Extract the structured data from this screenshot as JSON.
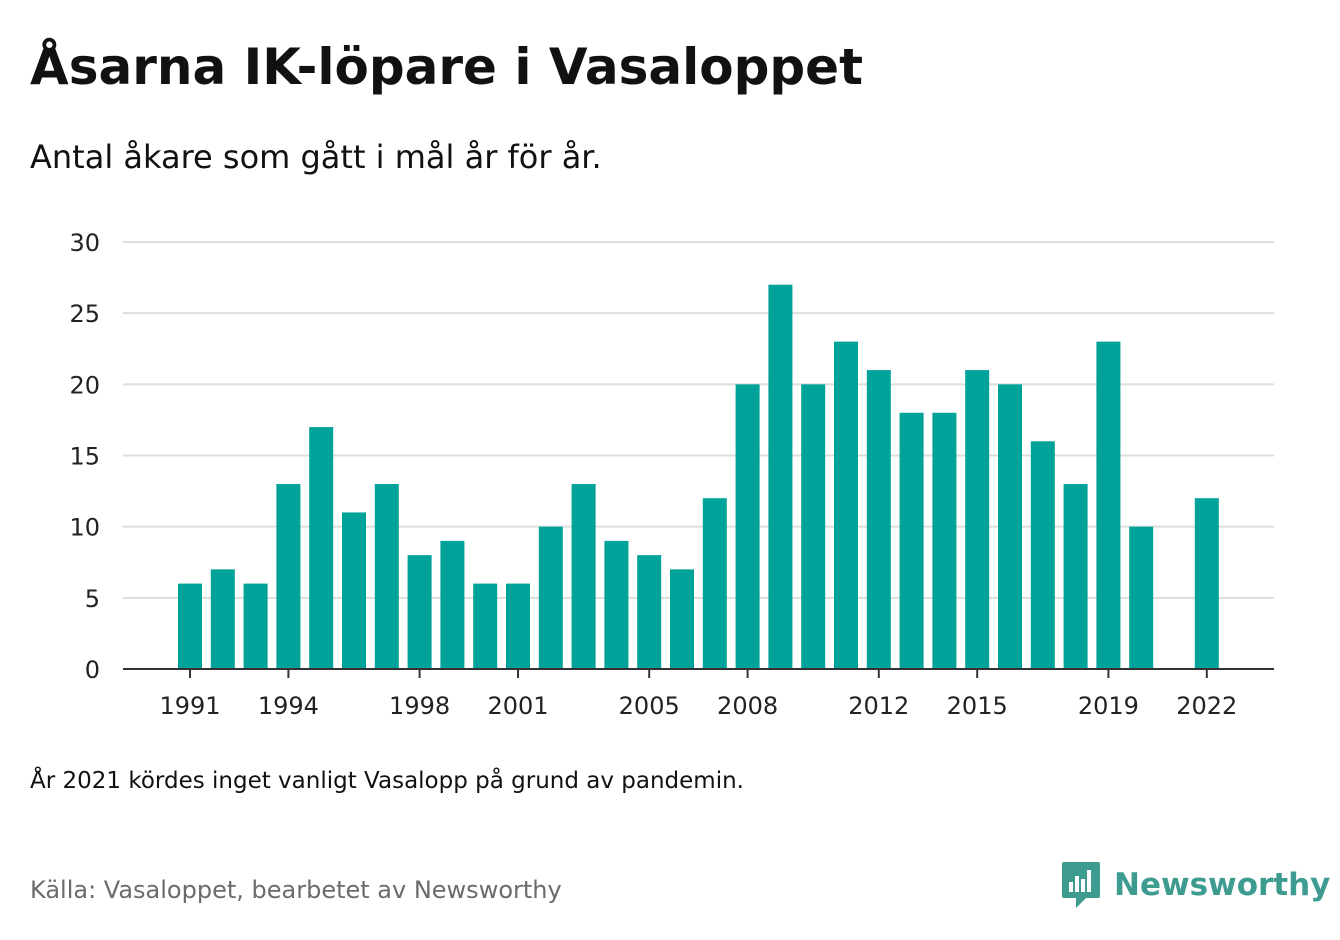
{
  "title": "Åsarna IK-löpare i Vasaloppet",
  "subtitle": "Antal åkare som gått i mål år för år.",
  "note": "År 2021 kördes inget vanligt Vasalopp på grund av pandemin.",
  "source": "Källa: Vasaloppet, bearbetet av Newsworthy",
  "brand": {
    "name": "Newsworthy",
    "icon": "newsworthy-logo-icon",
    "color": "#3d9b8f"
  },
  "colors": {
    "bar": "#00a39a",
    "grid": "#dddddd",
    "axis": "#333333"
  },
  "chart_data": {
    "type": "bar",
    "x": [
      1991,
      1992,
      1993,
      1994,
      1995,
      1996,
      1997,
      1998,
      1999,
      2000,
      2001,
      2002,
      2003,
      2004,
      2005,
      2006,
      2007,
      2008,
      2009,
      2010,
      2011,
      2012,
      2013,
      2014,
      2015,
      2016,
      2017,
      2018,
      2019,
      2020,
      2021,
      2022
    ],
    "values": [
      6,
      7,
      6,
      13,
      17,
      11,
      13,
      8,
      9,
      6,
      6,
      10,
      13,
      9,
      8,
      7,
      12,
      20,
      27,
      20,
      23,
      21,
      18,
      18,
      21,
      20,
      16,
      13,
      23,
      10,
      null,
      12
    ],
    "xticks": [
      1991,
      1994,
      1998,
      2001,
      2005,
      2008,
      2012,
      2015,
      2019,
      2022
    ],
    "xtick_labels": [
      "1991",
      "1994",
      "1998",
      "2001",
      "2005",
      "2008",
      "2012",
      "2015",
      "2019",
      "2022"
    ],
    "yticks": [
      0,
      5,
      10,
      15,
      20,
      25,
      30
    ],
    "ytick_labels": [
      "0",
      "5",
      "10",
      "15",
      "20",
      "25",
      "30"
    ],
    "ylim": [
      0,
      30
    ],
    "grid": true,
    "legend": "none"
  }
}
